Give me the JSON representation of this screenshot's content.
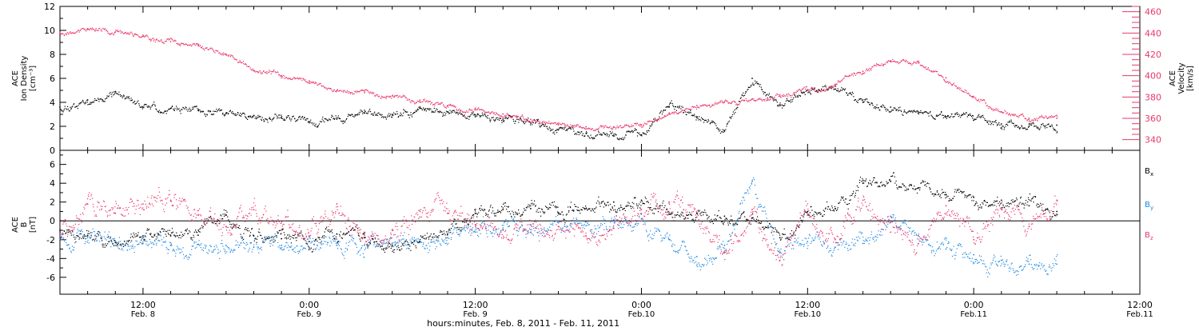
{
  "chart_data": [
    {
      "type": "scatter",
      "panel": "top",
      "ylabel_left": [
        "ACE",
        "Ion Density",
        "[cm⁻³]"
      ],
      "ylabel_right": [
        "ACE",
        "Velocity",
        "[km/s]"
      ],
      "ylim_left": [
        0,
        12
      ],
      "ylim_right": [
        330,
        465
      ],
      "left_ticks": [
        "0",
        "2",
        "4",
        "6",
        "8",
        "10",
        "12"
      ],
      "right_ticks": [
        "340",
        "360",
        "380",
        "400",
        "420",
        "440",
        "460"
      ],
      "x_hours_range": [
        6,
        78.5
      ],
      "series": [
        {
          "axis": "left",
          "color": "#000000",
          "x_hours": [
            6,
            8,
            10,
            12,
            14,
            16,
            18,
            20,
            22,
            24,
            26,
            28,
            30,
            32,
            34,
            36,
            38,
            40,
            42,
            44,
            46,
            48,
            50,
            52,
            54,
            56,
            58,
            60,
            62,
            64,
            66,
            68,
            70,
            72,
            74,
            76,
            78
          ],
          "values": [
            3.6,
            4.2,
            4.9,
            3.6,
            3.5,
            3.3,
            3.1,
            2.9,
            2.7,
            2.4,
            2.6,
            3.1,
            3.0,
            3.5,
            3.2,
            2.8,
            2.6,
            2.3,
            1.7,
            1.4,
            1.2,
            1.3,
            3.6,
            2.8,
            1.6,
            6.0,
            3.8,
            5.0,
            5.4,
            4.0,
            3.6,
            3.2,
            2.8,
            2.5,
            2.2,
            2.0,
            2.1
          ]
        },
        {
          "axis": "right",
          "color": "#E8386A",
          "x_hours": [
            6,
            8,
            10,
            12,
            14,
            16,
            18,
            20,
            22,
            24,
            26,
            28,
            30,
            32,
            34,
            36,
            38,
            40,
            42,
            44,
            46,
            48,
            50,
            52,
            54,
            56,
            58,
            60,
            62,
            64,
            66,
            68,
            70,
            72,
            74,
            76,
            78
          ],
          "values": [
            440,
            444,
            441,
            438,
            432,
            428,
            420,
            405,
            400,
            395,
            386,
            384,
            381,
            377,
            372,
            368,
            364,
            359,
            354,
            352,
            352,
            354,
            365,
            372,
            375,
            378,
            382,
            386,
            392,
            404,
            414,
            412,
            398,
            380,
            366,
            360,
            360
          ]
        }
      ]
    },
    {
      "type": "scatter",
      "panel": "bottom",
      "ylabel": [
        "ACE",
        "B",
        "[nT]"
      ],
      "ylim": [
        -7.8,
        7.5
      ],
      "y_ticks": [
        "-6",
        "-4",
        "-2",
        "0",
        "2",
        "4",
        "6"
      ],
      "x_hours_range": [
        6,
        78.5
      ],
      "zero_line": true,
      "series": [
        {
          "name": "Bx",
          "label_main": "B",
          "label_sub": "x",
          "color": "#000000",
          "x_hours": [
            6,
            8,
            10,
            12,
            14,
            16,
            18,
            20,
            22,
            24,
            26,
            28,
            30,
            32,
            34,
            36,
            38,
            40,
            42,
            44,
            46,
            48,
            50,
            52,
            54,
            56,
            58,
            60,
            62,
            64,
            66,
            68,
            70,
            72,
            74,
            76,
            78
          ],
          "values": [
            -1.0,
            -1.6,
            -2.3,
            -1.6,
            -1.6,
            -1.0,
            0.6,
            -1.6,
            -1.9,
            -2.2,
            -1.4,
            -1.8,
            -2.6,
            -2.2,
            -1.4,
            0.8,
            1.2,
            1.3,
            0.8,
            1.3,
            2.0,
            2.2,
            0.7,
            0.8,
            0.5,
            0.3,
            -1.8,
            1.0,
            1.3,
            4.0,
            4.2,
            3.5,
            2.8,
            2.5,
            2.2,
            1.6,
            1.0
          ]
        },
        {
          "name": "By",
          "label_main": "B",
          "label_sub": "y",
          "color": "#1E88E0",
          "x_hours": [
            6,
            8,
            10,
            12,
            14,
            16,
            18,
            20,
            22,
            24,
            26,
            28,
            30,
            32,
            34,
            36,
            38,
            40,
            42,
            44,
            46,
            48,
            50,
            52,
            54,
            56,
            58,
            60,
            62,
            64,
            66,
            68,
            70,
            72,
            74,
            76,
            78
          ],
          "values": [
            -1.4,
            -1.8,
            -2.6,
            -2.4,
            -2.6,
            -2.5,
            -2.6,
            -2.8,
            -2.6,
            -2.8,
            -2.6,
            -2.6,
            -2.4,
            -2.3,
            -1.8,
            -1.2,
            -0.9,
            -0.4,
            -0.2,
            -0.1,
            0.1,
            0.2,
            -2.0,
            -3.8,
            -2.6,
            4.2,
            -3.4,
            -2.2,
            -2.8,
            -2.4,
            0.5,
            -2.4,
            -3.0,
            -3.6,
            -4.2,
            -4.6,
            -4.6
          ]
        },
        {
          "name": "Bz",
          "label_main": "B",
          "label_sub": "z",
          "color": "#E8386A",
          "x_hours": [
            6,
            8,
            10,
            12,
            14,
            16,
            18,
            20,
            22,
            24,
            26,
            28,
            30,
            32,
            34,
            36,
            38,
            40,
            42,
            44,
            46,
            48,
            50,
            52,
            54,
            56,
            58,
            60,
            62,
            64,
            66,
            68,
            70,
            72,
            74,
            76,
            78
          ],
          "values": [
            -1.4,
            1.8,
            0.8,
            1.8,
            2.2,
            0.6,
            -0.6,
            1.2,
            -1.0,
            -1.6,
            1.8,
            -1.2,
            -1.0,
            0.4,
            0.8,
            -0.4,
            -1.0,
            -1.2,
            -0.6,
            -1.6,
            -0.8,
            1.2,
            2.0,
            0.4,
            -3.4,
            1.2,
            -4.2,
            0.6,
            -2.0,
            2.2,
            -1.2,
            -1.6,
            1.6,
            -2.0,
            1.2,
            -0.6,
            2.2
          ]
        }
      ]
    }
  ],
  "x_axis": {
    "start_hour": 6,
    "end_hour": 84,
    "major_ticks": [
      {
        "hour": 12,
        "time": "12:00",
        "date": "Feb. 8"
      },
      {
        "hour": 24,
        "time": "0:00",
        "date": "Feb. 9"
      },
      {
        "hour": 36,
        "time": "12:00",
        "date": "Feb. 9"
      },
      {
        "hour": 48,
        "time": "0:00",
        "date": "Feb.10"
      },
      {
        "hour": 60,
        "time": "12:00",
        "date": "Feb.10"
      },
      {
        "hour": 72,
        "time": "0:00",
        "date": "Feb.11"
      },
      {
        "hour": 84,
        "time": "12:00",
        "date": "Feb.11"
      }
    ],
    "title": "hours:minutes, Feb.  8, 2011 - Feb. 11, 2011"
  }
}
